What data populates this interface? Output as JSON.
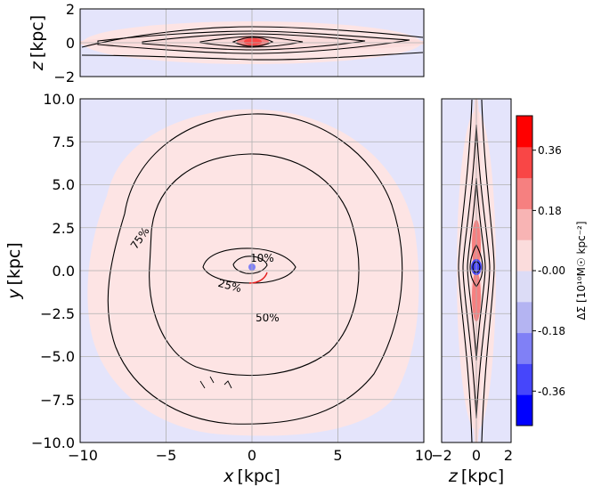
{
  "chart_data": [
    {
      "id": "top",
      "type": "heatmap",
      "xlim": [
        -10,
        10
      ],
      "ylim": [
        -2,
        2
      ],
      "yticks": [
        "−2",
        "0",
        "2"
      ],
      "ylabel_var": "z",
      "ylabel_unit": "[kpc]",
      "grid": true
    },
    {
      "id": "main",
      "type": "heatmap",
      "xlim": [
        -10,
        10
      ],
      "ylim": [
        -10,
        10
      ],
      "xticks": [
        "−10",
        "−5",
        "0",
        "5",
        "10"
      ],
      "yticks": [
        "−10.0",
        "−7.5",
        "−5.0",
        "−2.5",
        "0.0",
        "2.5",
        "5.0",
        "7.5",
        "10.0"
      ],
      "xlabel_var": "x",
      "xlabel_unit": "[kpc]",
      "ylabel_var": "y",
      "ylabel_unit": "[kpc]",
      "contour_labels": [
        "10%",
        "25%",
        "50%",
        "75%"
      ],
      "grid": true
    },
    {
      "id": "side",
      "type": "heatmap",
      "xlim": [
        -2,
        2
      ],
      "ylim": [
        -10,
        10
      ],
      "xticks": [
        "−2",
        "0",
        "2"
      ],
      "xlabel_var": "z",
      "xlabel_unit": "[kpc]",
      "grid": true
    },
    {
      "id": "colorbar",
      "type": "colorbar",
      "range": [
        -0.45,
        0.45
      ],
      "ticks": [
        "0.36",
        "0.18",
        "-0.00",
        "-0.18",
        "-0.36"
      ],
      "label": "ΔΣ [10¹⁰M☉ kpc⁻²]",
      "colors": [
        "#0000ff",
        "#4646fb",
        "#8080f6",
        "#b4b4f2",
        "#dcdcf6",
        "#fbdcdc",
        "#f8b4b4",
        "#f68080",
        "#f94646",
        "#ff0000"
      ]
    }
  ],
  "colors": {
    "positive": "#fde4e4",
    "negative": "#e4e4fb"
  }
}
